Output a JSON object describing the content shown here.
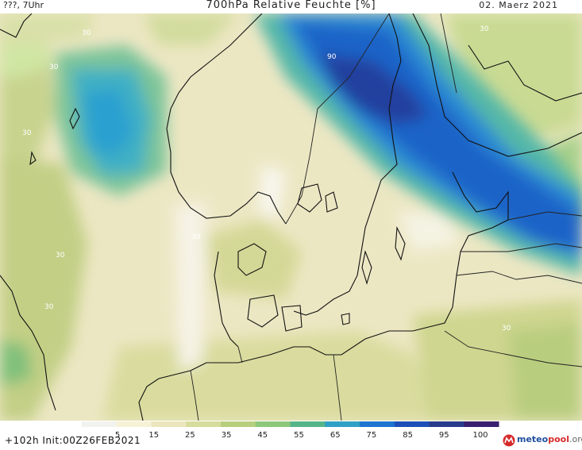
{
  "header": {
    "left": "???, 7Uhr",
    "title": "700hPa Relative Feuchte [%]",
    "date": "02. Maerz 2021"
  },
  "map": {
    "contour_labels": [
      "30",
      "30",
      "30",
      "90",
      "30",
      "30",
      "30",
      "30",
      "30"
    ]
  },
  "colorbar": {
    "ticks": [
      "5",
      "15",
      "25",
      "35",
      "45",
      "55",
      "65",
      "75",
      "85",
      "95",
      "100"
    ],
    "colors": [
      "#f2f2ee",
      "#f5f2d6",
      "#ece6bd",
      "#d6dc9b",
      "#b7cf7d",
      "#8ec77a",
      "#55b58a",
      "#2fa0c6",
      "#1e74cf",
      "#1e4fb8",
      "#283b8c",
      "#3a1f6e"
    ]
  },
  "footer": {
    "init": "+102h Init:00Z26FEB2021",
    "logo_text": "meteopool.org",
    "logo_color": "#d62b2b",
    "logo_color2": "#1f4fa0"
  }
}
